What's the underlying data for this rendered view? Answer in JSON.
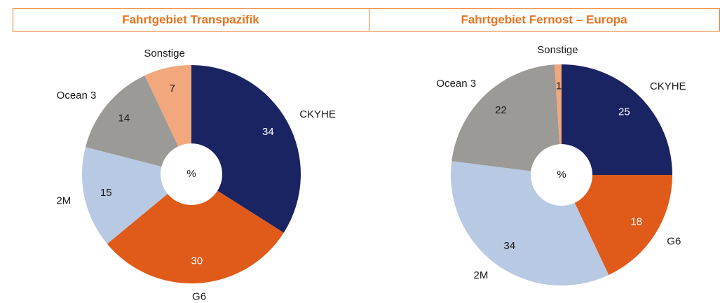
{
  "chart_data": [
    {
      "type": "donut",
      "title": "Fahrtgebiet Transpazifik",
      "center_label": "%",
      "categories": [
        "CKYHE",
        "G6",
        "2M",
        "Ocean 3",
        "Sonstige"
      ],
      "values": [
        34,
        30,
        15,
        14,
        7
      ],
      "colors": [
        "#1b2462",
        "#e05a1a",
        "#b8c9e3",
        "#9c9a97",
        "#f2a77d"
      ]
    },
    {
      "type": "donut",
      "title": "Fahrtgebiet Fernost – Europa",
      "center_label": "%",
      "categories": [
        "CKYHE",
        "G6",
        "2M",
        "Ocean 3",
        "Sonstige"
      ],
      "values": [
        25,
        18,
        34,
        22,
        1
      ],
      "colors": [
        "#1b2462",
        "#e05a1a",
        "#b8c9e3",
        "#9c9a97",
        "#f2a77d"
      ]
    }
  ]
}
